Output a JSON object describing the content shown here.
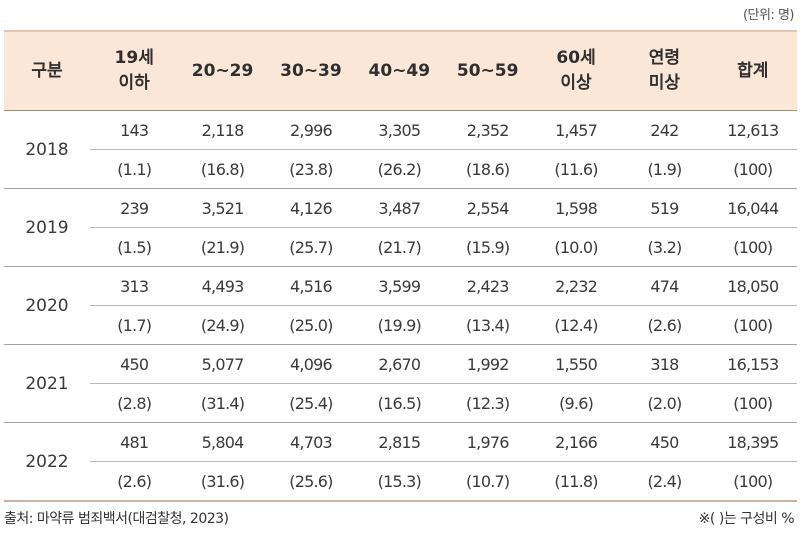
{
  "unit_note": "(단위: 명)",
  "headers": [
    "구분",
    "19세\n이하",
    "20~29",
    "30~39",
    "40~49",
    "50~59",
    "60세\n이상",
    "연령\n미상",
    "합계"
  ],
  "rows": [
    {
      "year": "2018",
      "counts": [
        "143",
        "2,118",
        "2,996",
        "3,305",
        "2,352",
        "1,457",
        "242",
        "12,613"
      ],
      "pcts": [
        "(1.1)",
        "(16.8)",
        "(23.8)",
        "(26.2)",
        "(18.6)",
        "(11.6)",
        "(1.9)",
        "(100)"
      ]
    },
    {
      "year": "2019",
      "counts": [
        "239",
        "3,521",
        "4,126",
        "3,487",
        "2,554",
        "1,598",
        "519",
        "16,044"
      ],
      "pcts": [
        "(1.5)",
        "(21.9)",
        "(25.7)",
        "(21.7)",
        "(15.9)",
        "(10.0)",
        "(3.2)",
        "(100)"
      ]
    },
    {
      "year": "2020",
      "counts": [
        "313",
        "4,493",
        "4,516",
        "3,599",
        "2,423",
        "2,232",
        "474",
        "18,050"
      ],
      "pcts": [
        "(1.7)",
        "(24.9)",
        "(25.0)",
        "(19.9)",
        "(13.4)",
        "(12.4)",
        "(2.6)",
        "(100)"
      ]
    },
    {
      "year": "2021",
      "counts": [
        "450",
        "5,077",
        "4,096",
        "2,670",
        "1,992",
        "1,550",
        "318",
        "16,153"
      ],
      "pcts": [
        "(2.8)",
        "(31.4)",
        "(25.4)",
        "(16.5)",
        "(12.3)",
        "(9.6)",
        "(2.0)",
        "(100)"
      ]
    },
    {
      "year": "2022",
      "counts": [
        "481",
        "5,804",
        "4,703",
        "2,815",
        "1,976",
        "2,166",
        "450",
        "18,395"
      ],
      "pcts": [
        "(2.6)",
        "(31.6)",
        "(25.6)",
        "(15.3)",
        "(10.7)",
        "(11.8)",
        "(2.4)",
        "(100)"
      ]
    }
  ],
  "source": "출처: 마약류 범죄백서(대검찰청, 2023)",
  "note": "※( )는 구성비 %",
  "colors": {
    "header_bg": "#fbe7d8",
    "header_border": "#b08a72"
  }
}
